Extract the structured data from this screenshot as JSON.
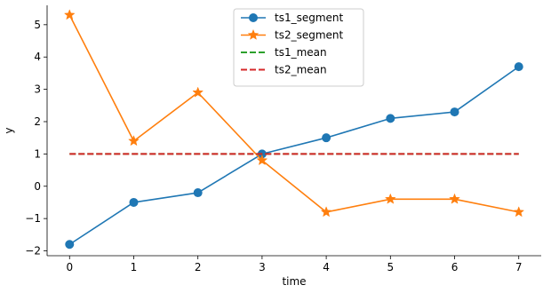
{
  "chart_data": {
    "type": "line",
    "title": "",
    "xlabel": "time",
    "ylabel": "y",
    "xlim": [
      -0.35,
      7.35
    ],
    "ylim": [
      -2.15,
      5.6
    ],
    "xticks": [
      0,
      1,
      2,
      3,
      4,
      5,
      6,
      7
    ],
    "xtick_labels": [
      "0",
      "1",
      "2",
      "3",
      "4",
      "5",
      "6",
      "7"
    ],
    "yticks": [
      -2,
      -1,
      0,
      1,
      2,
      3,
      4,
      5
    ],
    "ytick_labels": [
      "−2",
      "−1",
      "0",
      "1",
      "2",
      "3",
      "4",
      "5"
    ],
    "grid": false,
    "legend_position": "top-center",
    "x": [
      0,
      1,
      2,
      3,
      4,
      5,
      6,
      7
    ],
    "series": [
      {
        "name": "ts1_segment",
        "values": [
          -1.8,
          -0.5,
          -0.2,
          1.0,
          1.5,
          2.1,
          2.3,
          3.7
        ],
        "color": "#1f77b4",
        "style": "solid",
        "marker": "circle"
      },
      {
        "name": "ts2_segment",
        "values": [
          5.3,
          1.4,
          2.9,
          0.8,
          -0.8,
          -0.4,
          -0.4,
          -0.8
        ],
        "color": "#ff7f0e",
        "style": "solid",
        "marker": "star"
      },
      {
        "name": "ts1_mean",
        "values": [
          1.0,
          1.0,
          1.0,
          1.0,
          1.0,
          1.0,
          1.0,
          1.0
        ],
        "color": "#2ca02c",
        "style": "dashed",
        "marker": "none"
      },
      {
        "name": "ts2_mean",
        "values": [
          1.0,
          1.0,
          1.0,
          1.0,
          1.0,
          1.0,
          1.0,
          1.0
        ],
        "color": "#d62728",
        "style": "dashed",
        "marker": "none"
      }
    ]
  }
}
